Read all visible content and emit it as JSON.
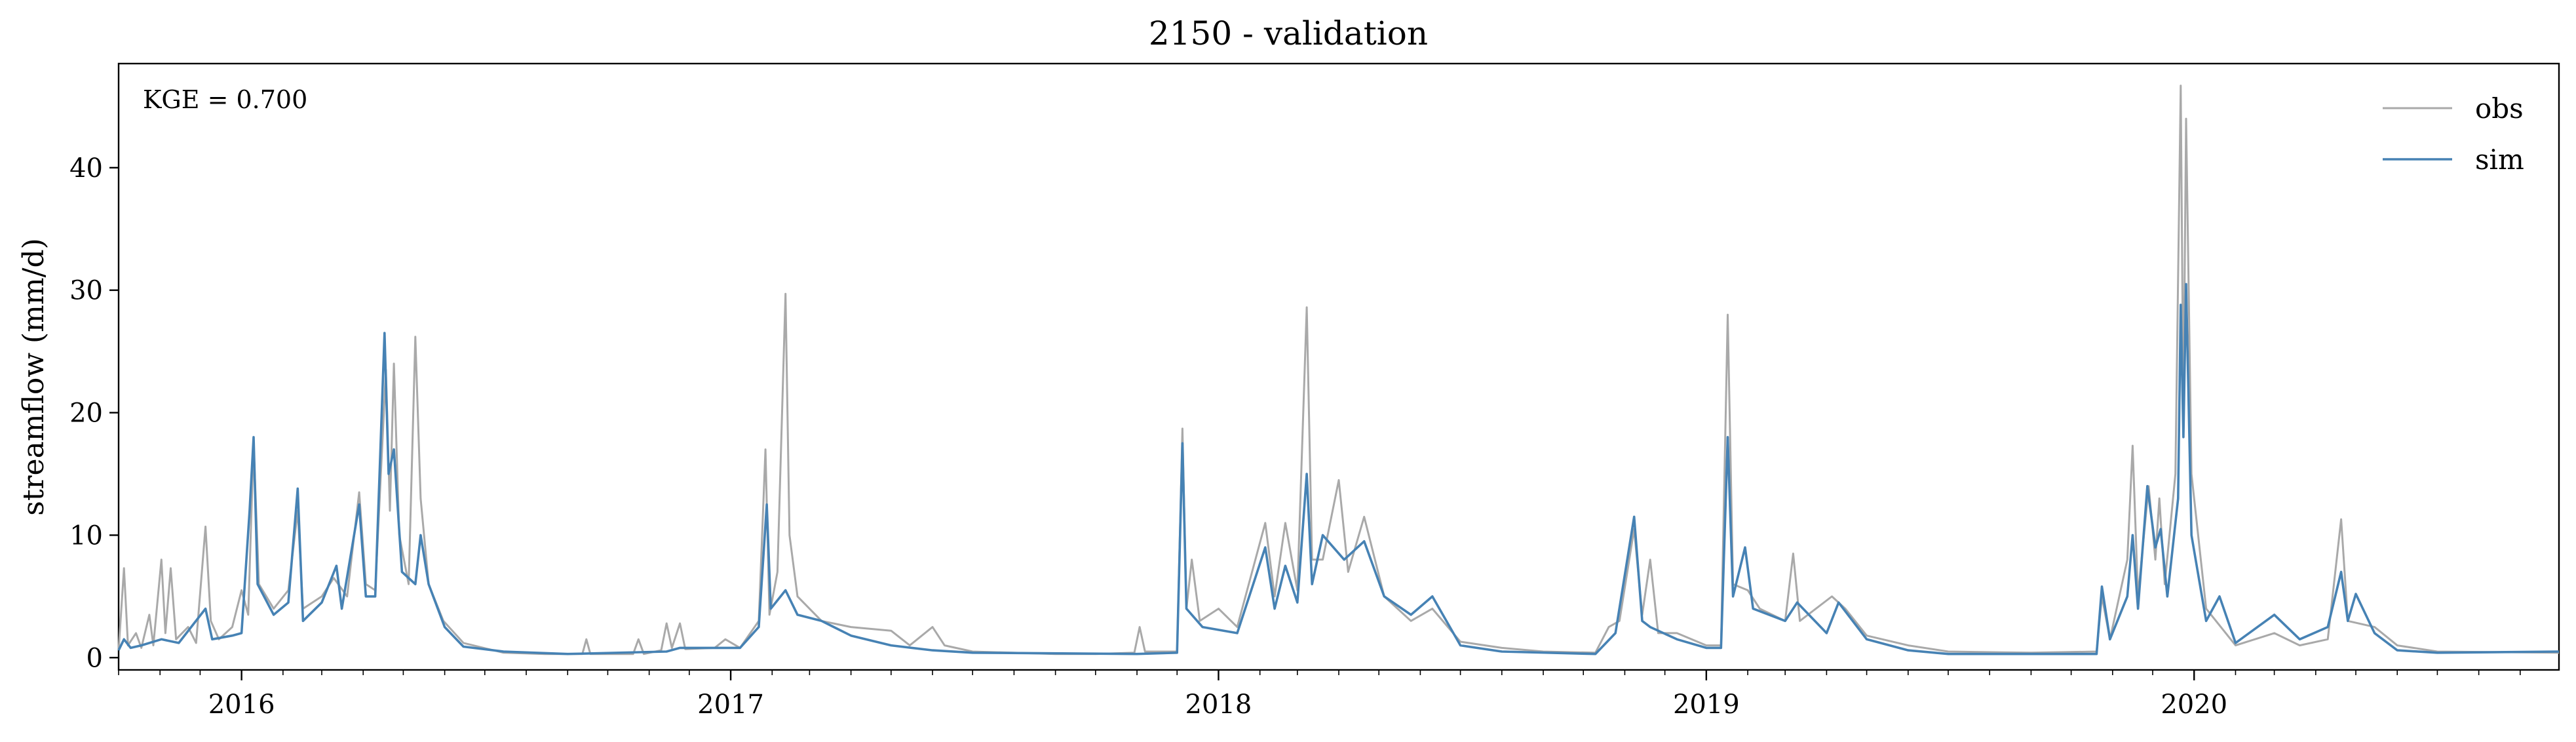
{
  "chart_data": {
    "type": "line",
    "title": "2150 - validation",
    "xlabel": "",
    "ylabel": "streamflow (mm/d)",
    "annotation": "KGE = 0.700",
    "xlim": [
      "2015-10-01",
      "2020-09-30"
    ],
    "ylim": [
      -1,
      48.5
    ],
    "x_ticks": [
      {
        "label": "2016",
        "date": "2016-01-01"
      },
      {
        "label": "2017",
        "date": "2017-01-01"
      },
      {
        "label": "2018",
        "date": "2018-01-01"
      },
      {
        "label": "2019",
        "date": "2019-01-01"
      },
      {
        "label": "2020",
        "date": "2020-01-01"
      }
    ],
    "y_ticks": [
      0,
      10,
      20,
      30,
      40
    ],
    "grid": false,
    "legend_position": "top-right",
    "series": [
      {
        "name": "obs",
        "color": "#a9a9a9",
        "points": [
          [
            "2015-10-01",
            0.6
          ],
          [
            "2015-10-05",
            7.3
          ],
          [
            "2015-10-08",
            1.0
          ],
          [
            "2015-10-14",
            2.0
          ],
          [
            "2015-10-18",
            0.8
          ],
          [
            "2015-10-24",
            3.5
          ],
          [
            "2015-10-27",
            1.0
          ],
          [
            "2015-11-02",
            8.0
          ],
          [
            "2015-11-05",
            2.0
          ],
          [
            "2015-11-09",
            7.3
          ],
          [
            "2015-11-13",
            1.5
          ],
          [
            "2015-11-22",
            2.5
          ],
          [
            "2015-11-28",
            1.2
          ],
          [
            "2015-12-05",
            10.7
          ],
          [
            "2015-12-09",
            3.0
          ],
          [
            "2015-12-15",
            1.5
          ],
          [
            "2015-12-25",
            2.5
          ],
          [
            "2016-01-01",
            5.5
          ],
          [
            "2016-01-06",
            3.5
          ],
          [
            "2016-01-10",
            17.5
          ],
          [
            "2016-01-14",
            6.0
          ],
          [
            "2016-01-25",
            4.0
          ],
          [
            "2016-02-05",
            5.5
          ],
          [
            "2016-02-12",
            12.0
          ],
          [
            "2016-02-16",
            4.0
          ],
          [
            "2016-03-01",
            5.0
          ],
          [
            "2016-03-10",
            6.5
          ],
          [
            "2016-03-20",
            5.0
          ],
          [
            "2016-03-29",
            13.5
          ],
          [
            "2016-04-03",
            6.0
          ],
          [
            "2016-04-10",
            5.5
          ],
          [
            "2016-04-18",
            23.5
          ],
          [
            "2016-04-21",
            12.0
          ],
          [
            "2016-04-24",
            24.0
          ],
          [
            "2016-04-28",
            10.0
          ],
          [
            "2016-05-05",
            6.0
          ],
          [
            "2016-05-10",
            26.2
          ],
          [
            "2016-05-14",
            13.0
          ],
          [
            "2016-05-20",
            6.0
          ],
          [
            "2016-05-31",
            3.0
          ],
          [
            "2016-06-15",
            1.2
          ],
          [
            "2016-07-15",
            0.4
          ],
          [
            "2016-08-15",
            0.3
          ],
          [
            "2016-09-12",
            0.3
          ],
          [
            "2016-09-15",
            1.5
          ],
          [
            "2016-09-18",
            0.3
          ],
          [
            "2016-10-20",
            0.3
          ],
          [
            "2016-10-24",
            1.5
          ],
          [
            "2016-10-28",
            0.3
          ],
          [
            "2016-11-10",
            0.6
          ],
          [
            "2016-11-14",
            2.8
          ],
          [
            "2016-11-18",
            0.8
          ],
          [
            "2016-11-24",
            2.8
          ],
          [
            "2016-11-28",
            0.7
          ],
          [
            "2016-12-20",
            0.8
          ],
          [
            "2016-12-28",
            1.5
          ],
          [
            "2017-01-08",
            0.8
          ],
          [
            "2017-01-22",
            3.0
          ],
          [
            "2017-01-27",
            17.0
          ],
          [
            "2017-01-30",
            3.5
          ],
          [
            "2017-02-05",
            7.0
          ],
          [
            "2017-02-11",
            29.7
          ],
          [
            "2017-02-14",
            10.0
          ],
          [
            "2017-02-20",
            5.0
          ],
          [
            "2017-03-10",
            3.0
          ],
          [
            "2017-04-01",
            2.5
          ],
          [
            "2017-05-01",
            2.2
          ],
          [
            "2017-05-15",
            1.0
          ],
          [
            "2017-06-01",
            2.5
          ],
          [
            "2017-06-10",
            1.0
          ],
          [
            "2017-07-01",
            0.5
          ],
          [
            "2017-09-01",
            0.3
          ],
          [
            "2017-10-01",
            0.3
          ],
          [
            "2017-10-30",
            0.4
          ],
          [
            "2017-11-03",
            2.5
          ],
          [
            "2017-11-07",
            0.5
          ],
          [
            "2017-12-01",
            0.5
          ],
          [
            "2017-12-05",
            18.7
          ],
          [
            "2017-12-08",
            4.0
          ],
          [
            "2017-12-12",
            8.0
          ],
          [
            "2017-12-18",
            3.0
          ],
          [
            "2018-01-01",
            4.0
          ],
          [
            "2018-01-15",
            2.5
          ],
          [
            "2018-02-05",
            11.0
          ],
          [
            "2018-02-12",
            5.0
          ],
          [
            "2018-02-20",
            11.0
          ],
          [
            "2018-03-01",
            5.5
          ],
          [
            "2018-03-08",
            28.6
          ],
          [
            "2018-03-12",
            8.0
          ],
          [
            "2018-03-20",
            8.0
          ],
          [
            "2018-04-01",
            14.5
          ],
          [
            "2018-04-08",
            7.0
          ],
          [
            "2018-04-20",
            11.5
          ],
          [
            "2018-05-05",
            5.0
          ],
          [
            "2018-05-25",
            3.0
          ],
          [
            "2018-06-10",
            4.0
          ],
          [
            "2018-07-01",
            1.3
          ],
          [
            "2018-08-01",
            0.8
          ],
          [
            "2018-09-01",
            0.5
          ],
          [
            "2018-10-10",
            0.4
          ],
          [
            "2018-10-20",
            2.5
          ],
          [
            "2018-10-28",
            3.0
          ],
          [
            "2018-11-08",
            10.5
          ],
          [
            "2018-11-14",
            3.5
          ],
          [
            "2018-11-20",
            8.0
          ],
          [
            "2018-11-26",
            2.0
          ],
          [
            "2018-12-10",
            2.0
          ],
          [
            "2019-01-01",
            1.0
          ],
          [
            "2019-01-12",
            1.0
          ],
          [
            "2019-01-17",
            28.0
          ],
          [
            "2019-01-21",
            6.0
          ],
          [
            "2019-02-01",
            5.5
          ],
          [
            "2019-02-10",
            4.0
          ],
          [
            "2019-03-01",
            3.0
          ],
          [
            "2019-03-07",
            8.5
          ],
          [
            "2019-03-12",
            3.0
          ],
          [
            "2019-04-05",
            5.0
          ],
          [
            "2019-04-15",
            4.0
          ],
          [
            "2019-05-01",
            1.8
          ],
          [
            "2019-06-01",
            1.0
          ],
          [
            "2019-07-01",
            0.5
          ],
          [
            "2019-09-01",
            0.4
          ],
          [
            "2019-10-20",
            0.5
          ],
          [
            "2019-10-24",
            5.0
          ],
          [
            "2019-10-30",
            1.5
          ],
          [
            "2019-11-12",
            8.0
          ],
          [
            "2019-11-16",
            17.3
          ],
          [
            "2019-11-20",
            5.0
          ],
          [
            "2019-11-28",
            14.0
          ],
          [
            "2019-12-03",
            8.0
          ],
          [
            "2019-12-06",
            13.0
          ],
          [
            "2019-12-10",
            6.0
          ],
          [
            "2019-12-18",
            15.0
          ],
          [
            "2019-12-22",
            46.7
          ],
          [
            "2019-12-24",
            20.0
          ],
          [
            "2019-12-26",
            44.0
          ],
          [
            "2019-12-30",
            15.0
          ],
          [
            "2020-01-10",
            4.0
          ],
          [
            "2020-02-01",
            1.0
          ],
          [
            "2020-03-01",
            2.0
          ],
          [
            "2020-03-20",
            1.0
          ],
          [
            "2020-04-10",
            1.5
          ],
          [
            "2020-04-20",
            11.3
          ],
          [
            "2020-04-25",
            3.0
          ],
          [
            "2020-05-15",
            2.5
          ],
          [
            "2020-06-01",
            1.0
          ],
          [
            "2020-07-01",
            0.5
          ],
          [
            "2020-09-30",
            0.4
          ]
        ]
      },
      {
        "name": "sim",
        "color": "#4682b4",
        "points": [
          [
            "2015-10-01",
            0.6
          ],
          [
            "2015-10-05",
            1.5
          ],
          [
            "2015-10-10",
            0.8
          ],
          [
            "2015-10-18",
            1.0
          ],
          [
            "2015-11-02",
            1.5
          ],
          [
            "2015-11-15",
            1.2
          ],
          [
            "2015-12-05",
            4.0
          ],
          [
            "2015-12-10",
            1.5
          ],
          [
            "2015-12-25",
            1.8
          ],
          [
            "2016-01-01",
            2.0
          ],
          [
            "2016-01-07",
            12.0
          ],
          [
            "2016-01-10",
            18.0
          ],
          [
            "2016-01-13",
            6.0
          ],
          [
            "2016-01-25",
            3.5
          ],
          [
            "2016-02-05",
            4.5
          ],
          [
            "2016-02-12",
            13.8
          ],
          [
            "2016-02-16",
            3.0
          ],
          [
            "2016-03-01",
            4.5
          ],
          [
            "2016-03-12",
            7.5
          ],
          [
            "2016-03-16",
            4.0
          ],
          [
            "2016-03-29",
            12.5
          ],
          [
            "2016-04-03",
            5.0
          ],
          [
            "2016-04-10",
            5.0
          ],
          [
            "2016-04-17",
            26.5
          ],
          [
            "2016-04-20",
            15.0
          ],
          [
            "2016-04-24",
            17.0
          ],
          [
            "2016-04-30",
            7.0
          ],
          [
            "2016-05-10",
            6.0
          ],
          [
            "2016-05-14",
            10.0
          ],
          [
            "2016-05-20",
            6.0
          ],
          [
            "2016-06-01",
            2.5
          ],
          [
            "2016-06-15",
            0.9
          ],
          [
            "2016-07-15",
            0.5
          ],
          [
            "2016-09-01",
            0.3
          ],
          [
            "2016-11-14",
            0.5
          ],
          [
            "2016-11-24",
            0.8
          ],
          [
            "2016-12-28",
            0.8
          ],
          [
            "2017-01-08",
            0.8
          ],
          [
            "2017-01-22",
            2.5
          ],
          [
            "2017-01-28",
            12.5
          ],
          [
            "2017-01-31",
            4.0
          ],
          [
            "2017-02-11",
            5.5
          ],
          [
            "2017-02-20",
            3.5
          ],
          [
            "2017-03-10",
            3.0
          ],
          [
            "2017-04-01",
            1.8
          ],
          [
            "2017-05-01",
            1.0
          ],
          [
            "2017-06-01",
            0.6
          ],
          [
            "2017-07-01",
            0.4
          ],
          [
            "2017-11-01",
            0.3
          ],
          [
            "2017-12-01",
            0.4
          ],
          [
            "2017-12-05",
            17.5
          ],
          [
            "2017-12-08",
            4.0
          ],
          [
            "2017-12-20",
            2.5
          ],
          [
            "2018-01-15",
            2.0
          ],
          [
            "2018-02-05",
            9.0
          ],
          [
            "2018-02-12",
            4.0
          ],
          [
            "2018-02-20",
            7.5
          ],
          [
            "2018-03-01",
            4.5
          ],
          [
            "2018-03-08",
            15.0
          ],
          [
            "2018-03-12",
            6.0
          ],
          [
            "2018-03-20",
            10.0
          ],
          [
            "2018-04-05",
            8.0
          ],
          [
            "2018-04-20",
            9.5
          ],
          [
            "2018-05-05",
            5.0
          ],
          [
            "2018-05-25",
            3.5
          ],
          [
            "2018-06-10",
            5.0
          ],
          [
            "2018-07-01",
            1.0
          ],
          [
            "2018-08-01",
            0.5
          ],
          [
            "2018-10-10",
            0.3
          ],
          [
            "2018-10-25",
            2.0
          ],
          [
            "2018-11-08",
            11.5
          ],
          [
            "2018-11-14",
            3.0
          ],
          [
            "2018-11-20",
            2.5
          ],
          [
            "2018-12-10",
            1.5
          ],
          [
            "2019-01-01",
            0.8
          ],
          [
            "2019-01-12",
            0.8
          ],
          [
            "2019-01-17",
            18.0
          ],
          [
            "2019-01-21",
            5.0
          ],
          [
            "2019-01-30",
            9.0
          ],
          [
            "2019-02-05",
            4.0
          ],
          [
            "2019-03-01",
            3.0
          ],
          [
            "2019-03-10",
            4.5
          ],
          [
            "2019-04-01",
            2.0
          ],
          [
            "2019-04-10",
            4.5
          ],
          [
            "2019-05-01",
            1.5
          ],
          [
            "2019-06-01",
            0.6
          ],
          [
            "2019-07-01",
            0.3
          ],
          [
            "2019-09-01",
            0.3
          ],
          [
            "2019-10-20",
            0.3
          ],
          [
            "2019-10-24",
            5.8
          ],
          [
            "2019-10-30",
            1.5
          ],
          [
            "2019-11-12",
            5.0
          ],
          [
            "2019-11-16",
            10.0
          ],
          [
            "2019-11-20",
            4.0
          ],
          [
            "2019-11-27",
            14.0
          ],
          [
            "2019-12-03",
            9.0
          ],
          [
            "2019-12-07",
            10.5
          ],
          [
            "2019-12-12",
            5.0
          ],
          [
            "2019-12-20",
            13.0
          ],
          [
            "2019-12-22",
            28.8
          ],
          [
            "2019-12-24",
            18.0
          ],
          [
            "2019-12-26",
            30.5
          ],
          [
            "2019-12-30",
            10.0
          ],
          [
            "2020-01-10",
            3.0
          ],
          [
            "2020-01-20",
            5.0
          ],
          [
            "2020-02-01",
            1.2
          ],
          [
            "2020-03-01",
            3.5
          ],
          [
            "2020-03-20",
            1.5
          ],
          [
            "2020-04-10",
            2.5
          ],
          [
            "2020-04-20",
            7.0
          ],
          [
            "2020-04-25",
            3.0
          ],
          [
            "2020-05-01",
            5.2
          ],
          [
            "2020-05-15",
            2.0
          ],
          [
            "2020-06-01",
            0.6
          ],
          [
            "2020-07-01",
            0.4
          ],
          [
            "2020-09-30",
            0.5
          ]
        ]
      }
    ]
  }
}
